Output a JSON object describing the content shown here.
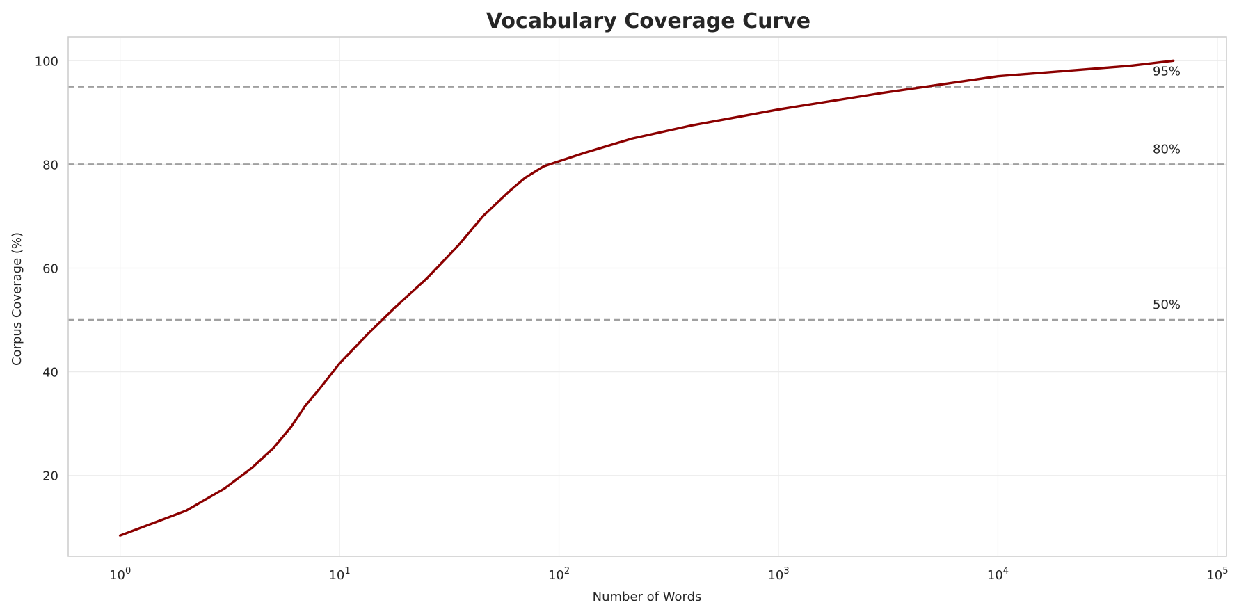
{
  "chart_data": {
    "type": "line",
    "title": "Vocabulary Coverage Curve",
    "xlabel": "Number of Words",
    "ylabel": "Corpus Coverage (%)",
    "xscale": "log",
    "xlim": [
      0.58,
      110000
    ],
    "ylim": [
      4.4,
      104.6
    ],
    "grid": true,
    "legend": null,
    "x_ticks": [
      {
        "value": 1,
        "base": "10",
        "exp": "0"
      },
      {
        "value": 10,
        "base": "10",
        "exp": "1"
      },
      {
        "value": 100,
        "base": "10",
        "exp": "2"
      },
      {
        "value": 1000,
        "base": "10",
        "exp": "3"
      },
      {
        "value": 10000,
        "base": "10",
        "exp": "4"
      },
      {
        "value": 100000,
        "base": "10",
        "exp": "5"
      }
    ],
    "y_ticks": [
      20,
      40,
      60,
      80,
      100
    ],
    "series": [
      {
        "name": "Coverage",
        "color": "#8b0000",
        "x": [
          1,
          2,
          3,
          4,
          5,
          6,
          7,
          8,
          10,
          13.6,
          18,
          25,
          35,
          45,
          60,
          70,
          85,
          100,
          130,
          216,
          400,
          1000,
          3000,
          10000,
          20000,
          40000,
          63000
        ],
        "y": [
          8.4,
          13.2,
          17.5,
          21.5,
          25.3,
          29.3,
          33.5,
          36.4,
          41.6,
          47.5,
          52.5,
          58.0,
          64.5,
          70.0,
          75.0,
          77.4,
          79.6,
          80.6,
          82.2,
          85.0,
          87.5,
          90.6,
          93.8,
          97.0,
          98.0,
          99.0,
          100.0
        ]
      }
    ],
    "reference_lines": [
      {
        "y": 95,
        "label": "95%",
        "color": "#a0a0a0",
        "style": "dashed"
      },
      {
        "y": 80,
        "label": "80%",
        "color": "#a0a0a0",
        "style": "dashed"
      },
      {
        "y": 50,
        "label": "50%",
        "color": "#a0a0a0",
        "style": "dashed"
      }
    ]
  },
  "colors": {
    "line": "#8b0000",
    "reference": "#a0a0a0",
    "grid": "#ebebeb",
    "axes_border": "#cccccc",
    "text": "#262626"
  }
}
